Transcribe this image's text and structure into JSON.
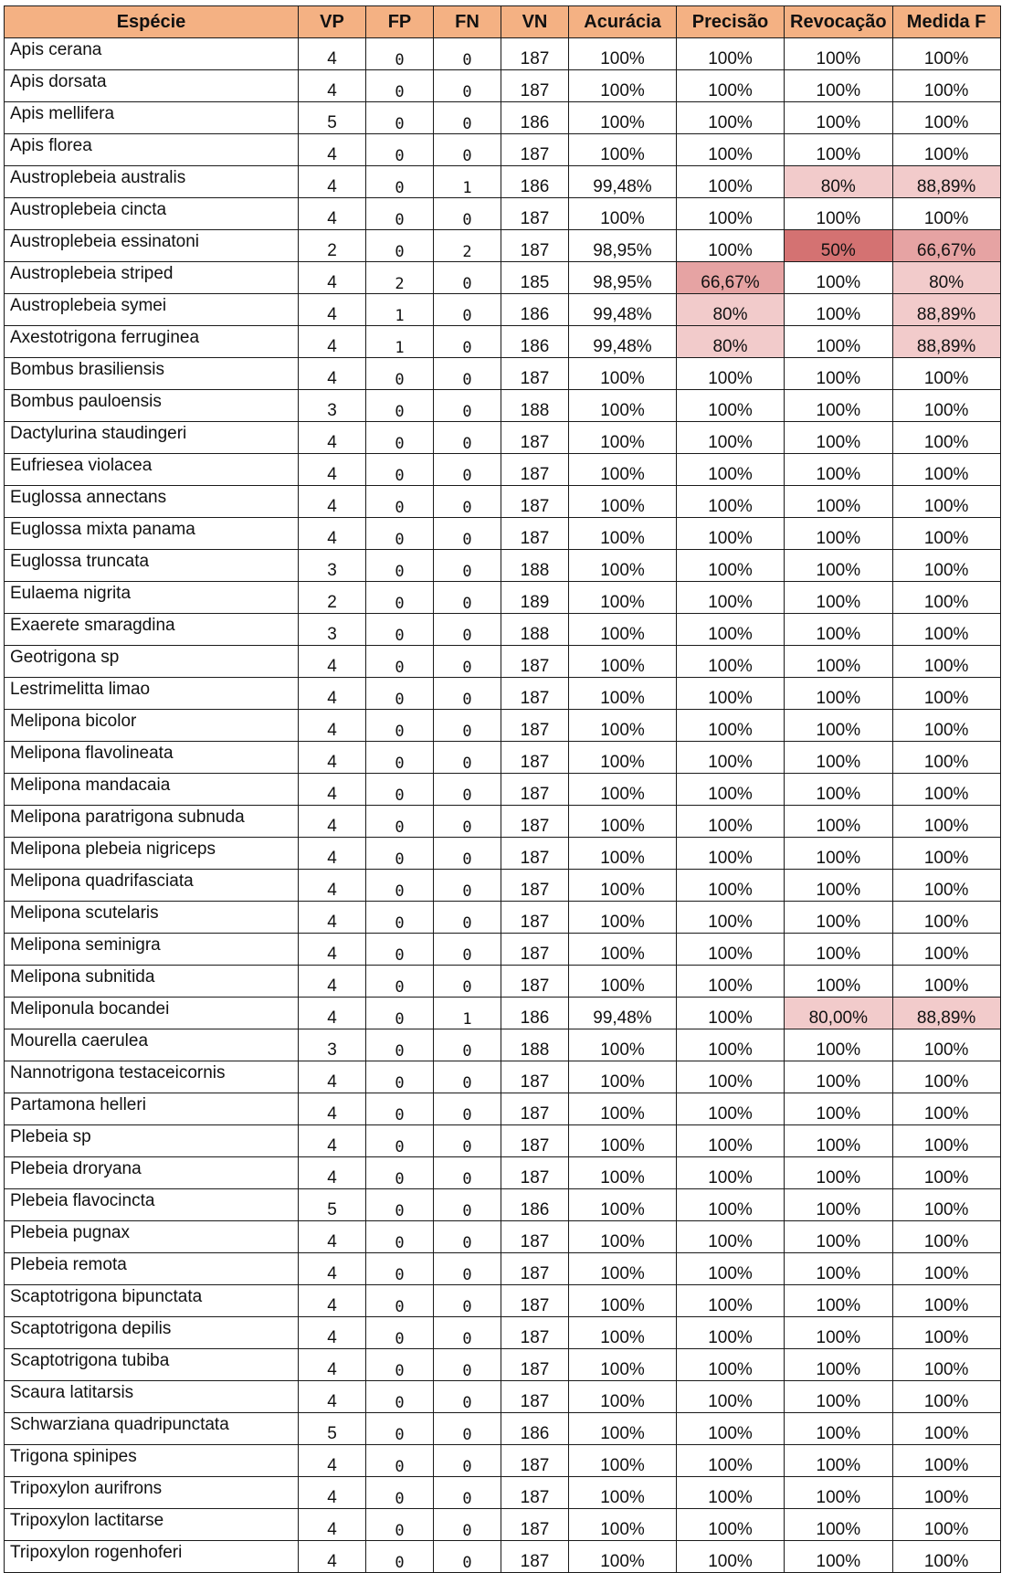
{
  "chart_data": {
    "type": "table",
    "columns": [
      "Espécie",
      "VP",
      "FP",
      "FN",
      "VN",
      "Acurácia",
      "Precisão",
      "Revocação",
      "Medida F"
    ],
    "header_color": "#f4b183",
    "highlight_colors": {
      "light": "#f2cbcb",
      "medium": "#e6a3a3",
      "strong": "#d47272"
    },
    "rows": [
      [
        "Apis cerana",
        "4",
        "0",
        "0",
        "187",
        "100%",
        "100%",
        "100%",
        "100%"
      ],
      [
        "Apis dorsata",
        "4",
        "0",
        "0",
        "187",
        "100%",
        "100%",
        "100%",
        "100%"
      ],
      [
        "Apis mellifera",
        "5",
        "0",
        "0",
        "186",
        "100%",
        "100%",
        "100%",
        "100%"
      ],
      [
        "Apis florea",
        "4",
        "0",
        "0",
        "187",
        "100%",
        "100%",
        "100%",
        "100%"
      ],
      [
        "Austroplebeia australis",
        "4",
        "0",
        "1",
        "186",
        "99,48%",
        "100%",
        "80%",
        "88,89%"
      ],
      [
        "Austroplebeia cincta",
        "4",
        "0",
        "0",
        "187",
        "100%",
        "100%",
        "100%",
        "100%"
      ],
      [
        "Austroplebeia essinatoni",
        "2",
        "0",
        "2",
        "187",
        "98,95%",
        "100%",
        "50%",
        "66,67%"
      ],
      [
        "Austroplebeia striped",
        "4",
        "2",
        "0",
        "185",
        "98,95%",
        "66,67%",
        "100%",
        "80%"
      ],
      [
        "Austroplebeia symei",
        "4",
        "1",
        "0",
        "186",
        "99,48%",
        "80%",
        "100%",
        "88,89%"
      ],
      [
        "Axestotrigona ferruginea",
        "4",
        "1",
        "0",
        "186",
        "99,48%",
        "80%",
        "100%",
        "88,89%"
      ],
      [
        "Bombus brasiliensis",
        "4",
        "0",
        "0",
        "187",
        "100%",
        "100%",
        "100%",
        "100%"
      ],
      [
        "Bombus pauloensis",
        "3",
        "0",
        "0",
        "188",
        "100%",
        "100%",
        "100%",
        "100%"
      ],
      [
        "Dactylurina staudingeri",
        "4",
        "0",
        "0",
        "187",
        "100%",
        "100%",
        "100%",
        "100%"
      ],
      [
        "Eufriesea violacea",
        "4",
        "0",
        "0",
        "187",
        "100%",
        "100%",
        "100%",
        "100%"
      ],
      [
        "Euglossa annectans",
        "4",
        "0",
        "0",
        "187",
        "100%",
        "100%",
        "100%",
        "100%"
      ],
      [
        "Euglossa mixta panama",
        "4",
        "0",
        "0",
        "187",
        "100%",
        "100%",
        "100%",
        "100%"
      ],
      [
        "Euglossa truncata",
        "3",
        "0",
        "0",
        "188",
        "100%",
        "100%",
        "100%",
        "100%"
      ],
      [
        "Eulaema nigrita",
        "2",
        "0",
        "0",
        "189",
        "100%",
        "100%",
        "100%",
        "100%"
      ],
      [
        "Exaerete smaragdina",
        "3",
        "0",
        "0",
        "188",
        "100%",
        "100%",
        "100%",
        "100%"
      ],
      [
        "Geotrigona sp",
        "4",
        "0",
        "0",
        "187",
        "100%",
        "100%",
        "100%",
        "100%"
      ],
      [
        "Lestrimelitta limao",
        "4",
        "0",
        "0",
        "187",
        "100%",
        "100%",
        "100%",
        "100%"
      ],
      [
        "Melipona bicolor",
        "4",
        "0",
        "0",
        "187",
        "100%",
        "100%",
        "100%",
        "100%"
      ],
      [
        "Melipona flavolineata",
        "4",
        "0",
        "0",
        "187",
        "100%",
        "100%",
        "100%",
        "100%"
      ],
      [
        "Melipona mandacaia",
        "4",
        "0",
        "0",
        "187",
        "100%",
        "100%",
        "100%",
        "100%"
      ],
      [
        "Melipona paratrigona subnuda",
        "4",
        "0",
        "0",
        "187",
        "100%",
        "100%",
        "100%",
        "100%"
      ],
      [
        "Melipona plebeia nigriceps",
        "4",
        "0",
        "0",
        "187",
        "100%",
        "100%",
        "100%",
        "100%"
      ],
      [
        "Melipona quadrifasciata",
        "4",
        "0",
        "0",
        "187",
        "100%",
        "100%",
        "100%",
        "100%"
      ],
      [
        "Melipona scutelaris",
        "4",
        "0",
        "0",
        "187",
        "100%",
        "100%",
        "100%",
        "100%"
      ],
      [
        "Melipona seminigra",
        "4",
        "0",
        "0",
        "187",
        "100%",
        "100%",
        "100%",
        "100%"
      ],
      [
        "Melipona subnitida",
        "4",
        "0",
        "0",
        "187",
        "100%",
        "100%",
        "100%",
        "100%"
      ],
      [
        "Meliponula bocandei",
        "4",
        "0",
        "1",
        "186",
        "99,48%",
        "100%",
        "80,00%",
        "88,89%"
      ],
      [
        "Mourella caerulea",
        "3",
        "0",
        "0",
        "188",
        "100%",
        "100%",
        "100%",
        "100%"
      ],
      [
        "Nannotrigona testaceicornis",
        "4",
        "0",
        "0",
        "187",
        "100%",
        "100%",
        "100%",
        "100%"
      ],
      [
        "Partamona helleri",
        "4",
        "0",
        "0",
        "187",
        "100%",
        "100%",
        "100%",
        "100%"
      ],
      [
        "Plebeia sp",
        "4",
        "0",
        "0",
        "187",
        "100%",
        "100%",
        "100%",
        "100%"
      ],
      [
        "Plebeia droryana",
        "4",
        "0",
        "0",
        "187",
        "100%",
        "100%",
        "100%",
        "100%"
      ],
      [
        "Plebeia flavocincta",
        "5",
        "0",
        "0",
        "186",
        "100%",
        "100%",
        "100%",
        "100%"
      ],
      [
        "Plebeia pugnax",
        "4",
        "0",
        "0",
        "187",
        "100%",
        "100%",
        "100%",
        "100%"
      ],
      [
        "Plebeia remota",
        "4",
        "0",
        "0",
        "187",
        "100%",
        "100%",
        "100%",
        "100%"
      ],
      [
        "Scaptotrigona bipunctata",
        "4",
        "0",
        "0",
        "187",
        "100%",
        "100%",
        "100%",
        "100%"
      ],
      [
        "Scaptotrigona depilis",
        "4",
        "0",
        "0",
        "187",
        "100%",
        "100%",
        "100%",
        "100%"
      ],
      [
        "Scaptotrigona tubiba",
        "4",
        "0",
        "0",
        "187",
        "100%",
        "100%",
        "100%",
        "100%"
      ],
      [
        "Scaura latitarsis",
        "4",
        "0",
        "0",
        "187",
        "100%",
        "100%",
        "100%",
        "100%"
      ],
      [
        "Schwarziana quadripunctata",
        "5",
        "0",
        "0",
        "186",
        "100%",
        "100%",
        "100%",
        "100%"
      ],
      [
        "Trigona spinipes",
        "4",
        "0",
        "0",
        "187",
        "100%",
        "100%",
        "100%",
        "100%"
      ],
      [
        "Tripoxylon aurifrons",
        "4",
        "0",
        "0",
        "187",
        "100%",
        "100%",
        "100%",
        "100%"
      ],
      [
        "Tripoxylon lactitarse",
        "4",
        "0",
        "0",
        "187",
        "100%",
        "100%",
        "100%",
        "100%"
      ],
      [
        "Tripoxylon rogenhoferi",
        "4",
        "0",
        "0",
        "187",
        "100%",
        "100%",
        "100%",
        "100%"
      ]
    ]
  }
}
